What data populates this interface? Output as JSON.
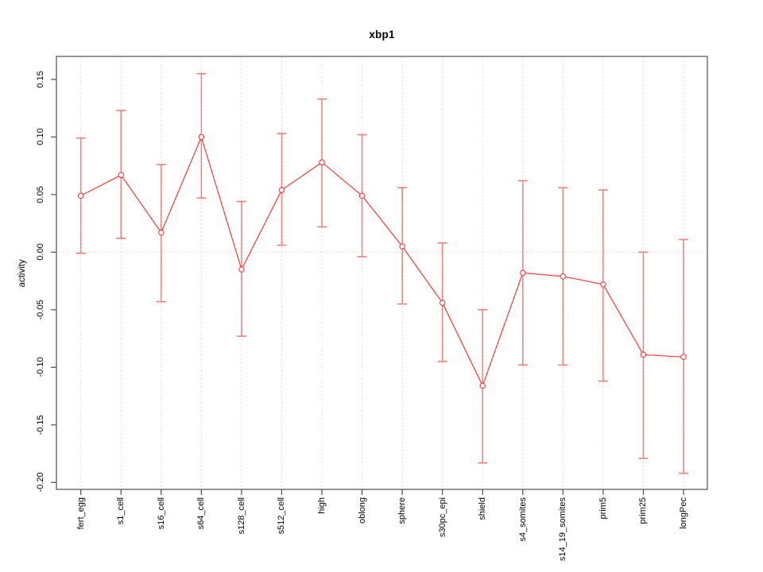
{
  "title": "xbp1",
  "chart_data": {
    "type": "line",
    "title": "xbp1",
    "xlabel": "",
    "ylabel": "activity",
    "categories": [
      "fert_egg",
      "s1_cell",
      "s16_cell",
      "s64_cell",
      "s128_cell",
      "s512_cell",
      "high",
      "oblong",
      "sphere",
      "s30pc_epi",
      "shield",
      "s4_somites",
      "s14_19_somites",
      "prim5",
      "prim25",
      "longPec"
    ],
    "values": [
      0.049,
      0.067,
      0.017,
      0.1,
      -0.015,
      0.054,
      0.078,
      0.049,
      0.005,
      -0.044,
      -0.116,
      -0.018,
      -0.021,
      -0.028,
      -0.089,
      -0.091
    ],
    "error_high": [
      0.099,
      0.123,
      0.076,
      0.155,
      0.044,
      0.103,
      0.133,
      0.102,
      0.056,
      0.008,
      -0.05,
      0.062,
      0.056,
      0.054,
      0.0,
      0.011
    ],
    "error_low": [
      -0.001,
      0.012,
      -0.043,
      0.047,
      -0.073,
      0.006,
      0.022,
      -0.004,
      -0.045,
      -0.095,
      -0.183,
      -0.098,
      -0.098,
      -0.112,
      -0.179,
      -0.192
    ],
    "ytick_values": [
      0.15,
      0.1,
      0.05,
      0.0,
      -0.05,
      -0.1,
      -0.15,
      -0.2
    ],
    "ytick_labels": [
      "0.15",
      "0.10",
      "0.05",
      "0.00",
      "-0.05",
      "-0.10",
      "-0.15",
      "-0.20"
    ],
    "ylim": [
      -0.206,
      0.17
    ],
    "grid": {
      "vertical_gridlines": true,
      "zero_reference_line": true
    },
    "legend": "none"
  },
  "colors": {
    "series_line": "#f83837",
    "point_stroke": "#f83837",
    "error_bar": "#f4918f",
    "error_bar_dash": "#e6504e",
    "error_cap": "#ef7d7b",
    "gridline": "#dcdcdc",
    "zero_line": "#c9c9c9",
    "axis_box": "#4d4d4d",
    "text": "#000000",
    "background": "#ffffff"
  }
}
